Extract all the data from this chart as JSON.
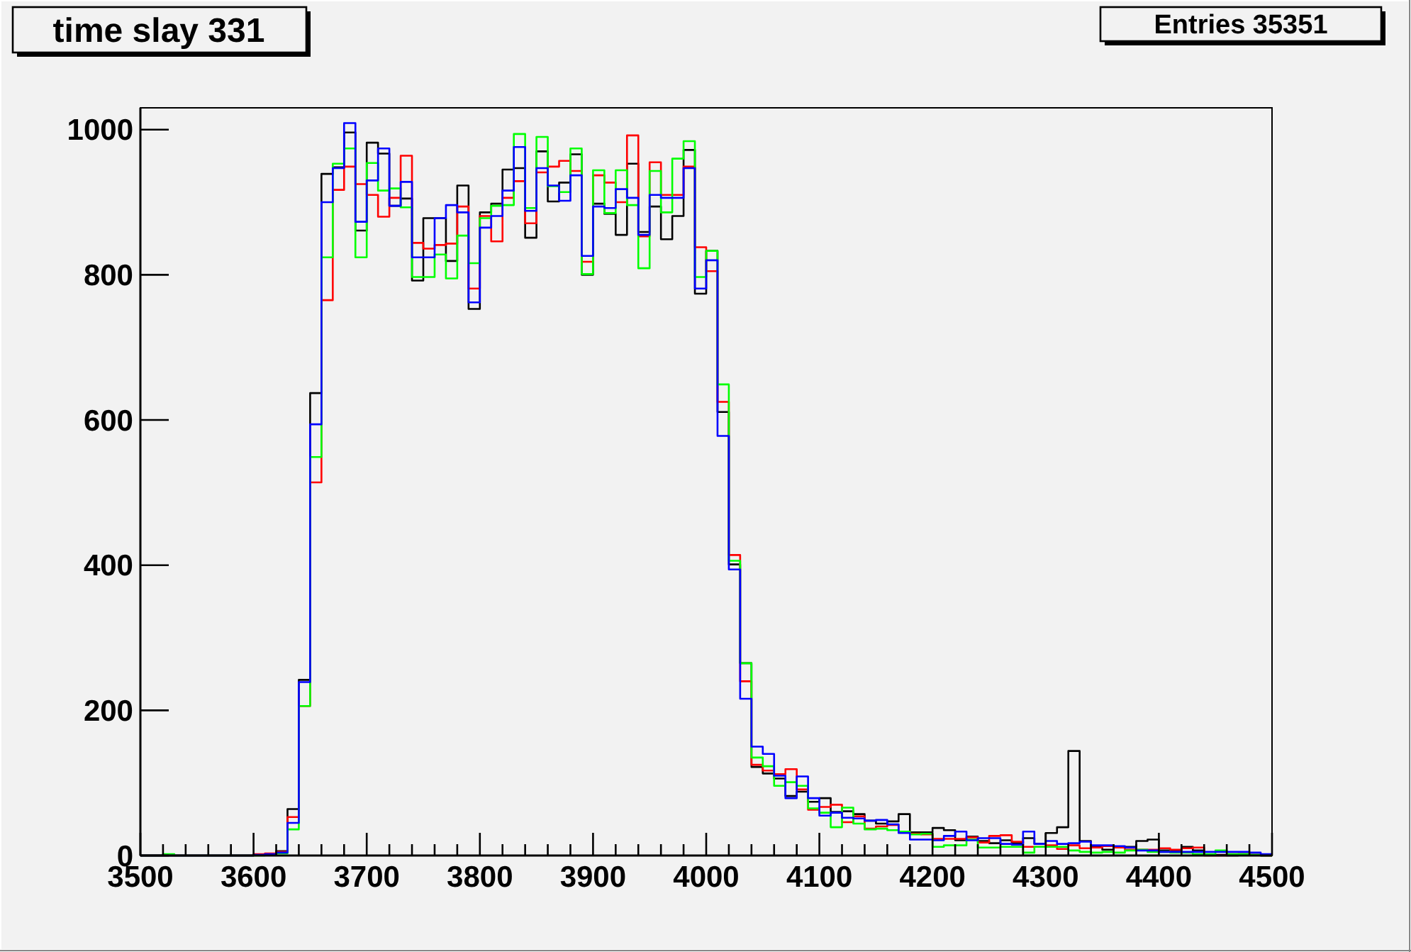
{
  "chart_data": {
    "type": "histogram",
    "title": "time slay 331",
    "annotations": [
      "Entries 35351"
    ],
    "bins": [
      3500,
      3510,
      3520,
      3530,
      3540,
      3550,
      3560,
      3570,
      3580,
      3590,
      3600,
      3610,
      3620,
      3630,
      3640,
      3650,
      3660,
      3670,
      3680,
      3690,
      3700,
      3710,
      3720,
      3730,
      3740,
      3750,
      3760,
      3770,
      3780,
      3790,
      3800,
      3810,
      3820,
      3830,
      3840,
      3850,
      3860,
      3870,
      3880,
      3890,
      3900,
      3910,
      3920,
      3930,
      3940,
      3950,
      3960,
      3970,
      3980,
      3990,
      4000,
      4010,
      4020,
      4030,
      4040,
      4050,
      4060,
      4070,
      4080,
      4090,
      4100,
      4110,
      4120,
      4130,
      4140,
      4150,
      4160,
      4170,
      4180,
      4190,
      4200,
      4210,
      4220,
      4230,
      4240,
      4250,
      4260,
      4270,
      4280,
      4290,
      4300,
      4310,
      4320,
      4330,
      4340,
      4350,
      4360,
      4370,
      4380,
      4390,
      4400,
      4410,
      4420,
      4430,
      4440,
      4450,
      4460,
      4470,
      4480,
      4490,
      4500
    ],
    "series": [
      {
        "color": "#000000",
        "values": [
          0,
          0,
          0,
          0,
          0,
          0,
          0,
          0,
          0,
          0,
          1,
          2,
          6,
          64,
          242,
          637,
          939,
          948,
          996,
          861,
          982,
          967,
          895,
          905,
          792,
          878,
          878,
          819,
          923,
          753,
          886,
          898,
          945,
          947,
          851,
          970,
          901,
          927,
          966,
          800,
          898,
          884,
          855,
          953,
          859,
          894,
          849,
          881,
          972,
          774,
          833,
          611,
          401,
          265,
          122,
          113,
          106,
          82,
          88,
          74,
          79,
          60,
          61,
          57,
          48,
          44,
          47,
          57,
          32,
          32,
          38,
          35,
          21,
          26,
          20,
          17,
          21,
          17,
          24,
          16,
          31,
          39,
          144,
          20,
          12,
          8,
          12,
          12,
          20,
          22,
          7,
          7,
          12,
          7,
          1,
          1,
          0,
          2,
          1,
          0
        ]
      },
      {
        "color": "#ff0000",
        "values": [
          0,
          0,
          0,
          0,
          0,
          0,
          0,
          0,
          0,
          0,
          2,
          3,
          5,
          53,
          206,
          514,
          765,
          917,
          949,
          925,
          910,
          880,
          906,
          964,
          844,
          836,
          841,
          843,
          894,
          781,
          881,
          846,
          906,
          929,
          871,
          941,
          949,
          957,
          943,
          818,
          937,
          927,
          900,
          992,
          853,
          955,
          910,
          910,
          949,
          838,
          805,
          625,
          414,
          240,
          125,
          117,
          112,
          119,
          91,
          63,
          67,
          70,
          46,
          54,
          37,
          40,
          42,
          33,
          30,
          29,
          23,
          23,
          23,
          25,
          18,
          27,
          28,
          19,
          12,
          12,
          14,
          9,
          14,
          10,
          11,
          13,
          11,
          8,
          8,
          8,
          10,
          8,
          10,
          11,
          0,
          0,
          2,
          2,
          1,
          0
        ]
      },
      {
        "color": "#00ff00",
        "values": [
          0,
          0,
          2,
          0,
          0,
          0,
          0,
          0,
          0,
          0,
          0,
          1,
          3,
          36,
          206,
          549,
          824,
          953,
          974,
          824,
          954,
          916,
          919,
          893,
          797,
          797,
          828,
          795,
          854,
          816,
          878,
          895,
          896,
          994,
          892,
          990,
          922,
          914,
          974,
          801,
          944,
          885,
          944,
          896,
          809,
          943,
          886,
          960,
          984,
          797,
          833,
          649,
          406,
          265,
          135,
          123,
          96,
          101,
          96,
          65,
          59,
          39,
          66,
          44,
          36,
          37,
          35,
          33,
          29,
          30,
          12,
          14,
          14,
          22,
          11,
          11,
          12,
          12,
          4,
          12,
          12,
          12,
          7,
          5,
          4,
          5,
          4,
          7,
          8,
          5,
          5,
          4,
          4,
          2,
          2,
          7,
          2,
          2,
          1,
          0
        ]
      },
      {
        "color": "#0000ff",
        "values": [
          0,
          0,
          0,
          0,
          0,
          0,
          0,
          0,
          0,
          0,
          1,
          2,
          4,
          45,
          239,
          594,
          900,
          947,
          1009,
          873,
          930,
          974,
          895,
          928,
          824,
          824,
          878,
          896,
          886,
          762,
          865,
          881,
          916,
          976,
          888,
          947,
          923,
          902,
          937,
          826,
          894,
          892,
          918,
          906,
          855,
          910,
          906,
          906,
          947,
          781,
          820,
          578,
          394,
          216,
          150,
          140,
          110,
          79,
          109,
          79,
          55,
          59,
          52,
          51,
          48,
          49,
          43,
          31,
          22,
          22,
          21,
          27,
          33,
          21,
          24,
          24,
          16,
          15,
          33,
          16,
          20,
          16,
          17,
          19,
          14,
          14,
          13,
          11,
          7,
          7,
          5,
          5,
          5,
          5,
          5,
          5,
          5,
          5,
          4,
          2
        ]
      }
    ],
    "xlim": [
      3500,
      4500
    ],
    "xticks": [
      3500,
      {
        "value": 3520,
        "label": null
      },
      {
        "value": 3540,
        "label": null
      },
      {
        "value": 3560,
        "label": null
      },
      {
        "value": 3580,
        "label": null
      },
      3600,
      {
        "value": 3620,
        "label": null
      },
      {
        "value": 3640,
        "label": null
      },
      {
        "value": 3660,
        "label": null
      },
      {
        "value": 3680,
        "label": null
      },
      3700,
      {
        "value": 3720,
        "label": null
      },
      {
        "value": 3740,
        "label": null
      },
      {
        "value": 3760,
        "label": null
      },
      {
        "value": 3780,
        "label": null
      },
      3800,
      {
        "value": 3820,
        "label": null
      },
      {
        "value": 3840,
        "label": null
      },
      {
        "value": 3860,
        "label": null
      },
      {
        "value": 3880,
        "label": null
      },
      3900,
      {
        "value": 3920,
        "label": null
      },
      {
        "value": 3940,
        "label": null
      },
      {
        "value": 3960,
        "label": null
      },
      {
        "value": 3980,
        "label": null
      },
      4000,
      {
        "value": 4020,
        "label": null
      },
      {
        "value": 4040,
        "label": null
      },
      {
        "value": 4060,
        "label": null
      },
      {
        "value": 4080,
        "label": null
      },
      4100,
      {
        "value": 4120,
        "label": null
      },
      {
        "value": 4140,
        "label": null
      },
      {
        "value": 4160,
        "label": null
      },
      {
        "value": 4180,
        "label": null
      },
      4200,
      {
        "value": 4220,
        "label": null
      },
      {
        "value": 4240,
        "label": null
      },
      {
        "value": 4260,
        "label": null
      },
      {
        "value": 4280,
        "label": null
      },
      4300,
      {
        "value": 4320,
        "label": null
      },
      {
        "value": 4340,
        "label": null
      },
      {
        "value": 4360,
        "label": null
      },
      {
        "value": 4380,
        "label": null
      },
      4400,
      {
        "value": 4420,
        "label": null
      },
      {
        "value": 4440,
        "label": null
      },
      {
        "value": 4460,
        "label": null
      },
      {
        "value": 4480,
        "label": null
      },
      4500
    ],
    "ylim": [
      0,
      1030
    ],
    "yticks": [
      0,
      200,
      400,
      600,
      800,
      1000
    ]
  }
}
